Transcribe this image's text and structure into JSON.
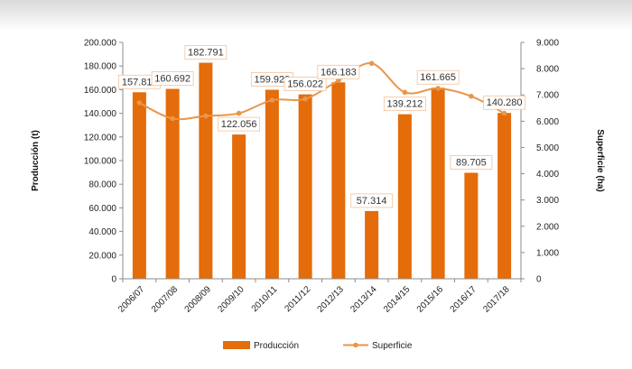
{
  "chart_data": {
    "type": "bar",
    "categories": [
      "2006/07",
      "2007/08",
      "2008/09",
      "2009/10",
      "2010/11",
      "2011/12",
      "2012/13",
      "2013/14",
      "2014/15",
      "2015/16",
      "2016/17",
      "2017/18"
    ],
    "series": [
      {
        "name": "Producción",
        "type": "bar",
        "axis": "left",
        "values": [
          157811,
          160692,
          182791,
          122056,
          159929,
          156022,
          166183,
          57314,
          139212,
          161665,
          89705,
          140280
        ],
        "labels": [
          "157.811",
          "160.692",
          "182.791",
          "122.056",
          "159.929",
          "156.022",
          "166.183",
          "57.314",
          "139.212",
          "161.665",
          "89.705",
          "140.280"
        ]
      },
      {
        "name": "Superficie",
        "type": "line",
        "axis": "right",
        "values": [
          6700,
          6100,
          6200,
          6300,
          6800,
          6850,
          7550,
          8200,
          7100,
          7250,
          6950,
          6300
        ]
      }
    ],
    "ylabel_left": "Producción (t)",
    "ylabel_right": "Superficie (ha)",
    "ylim_left": [
      0,
      200000
    ],
    "ylim_right": [
      0,
      9000
    ],
    "yticks_left": [
      "0",
      "20.000",
      "40.000",
      "60.000",
      "80.000",
      "100.000",
      "120.000",
      "140.000",
      "160.000",
      "180.000",
      "200.000"
    ],
    "yticks_right": [
      "0",
      "1.000",
      "2.000",
      "3.000",
      "4.000",
      "5.000",
      "6.000",
      "7.000",
      "8.000",
      "9.000"
    ],
    "legend_position": "bottom",
    "grid": false,
    "colors": {
      "bar": "#e46c0a",
      "line": "#e9964a",
      "label_border": "#f2c29a"
    }
  }
}
